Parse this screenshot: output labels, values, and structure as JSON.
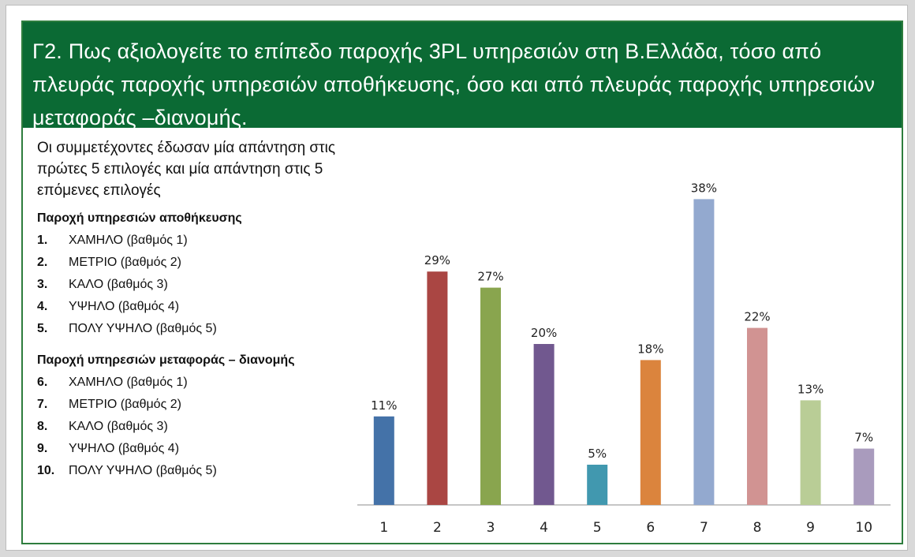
{
  "title": "Γ2. Πως αξιολογείτε το επίπεδο παροχής 3PL υπηρεσιών στη Β.Ελλάδα, τόσο από πλευράς παροχής υπηρεσιών αποθήκευσης, όσο και από πλευράς παροχής υπηρεσιών μεταφοράς –διανομής.",
  "note": "Οι συμμετέχοντες έδωσαν μία απάντηση στις πρώτες 5 επιλογές και μία απάντηση στις 5 επόμενες επιλογές",
  "legend": {
    "group1_title": "Παροχή υπηρεσιών αποθήκευσης",
    "group1_items": [
      {
        "num": "1.",
        "text": "ΧΑΜΗΛΟ (βαθμός 1)"
      },
      {
        "num": "2.",
        "text": "ΜΕΤΡΙΟ (βαθμός 2)"
      },
      {
        "num": "3.",
        "text": "ΚΑΛΟ (βαθμός 3)"
      },
      {
        "num": "4.",
        "text": "ΥΨΗΛΟ (βαθμός 4)"
      },
      {
        "num": "5.",
        "text": "ΠΟΛΥ ΥΨΗΛΟ (βαθμός 5)"
      }
    ],
    "group2_title": "Παροχή υπηρεσιών μεταφοράς – διανομής",
    "group2_items": [
      {
        "num": "6.",
        "text": "ΧΑΜΗΛΟ (βαθμός 1)"
      },
      {
        "num": "7.",
        "text": "ΜΕΤΡΙΟ (βαθμός 2)"
      },
      {
        "num": "8.",
        "text": "ΚΑΛΟ (βαθμός 3)"
      },
      {
        "num": "9.",
        "text": "ΥΨΗΛΟ (βαθμός 4)"
      },
      {
        "num": "10.",
        "text": "ΠΟΛΥ ΥΨΗΛΟ (βαθμός 5)"
      }
    ]
  },
  "chart_data": {
    "type": "bar",
    "title": "",
    "xlabel": "",
    "ylabel": "",
    "categories": [
      "1",
      "2",
      "3",
      "4",
      "5",
      "6",
      "7",
      "8",
      "9",
      "10"
    ],
    "values": [
      11,
      29,
      27,
      20,
      5,
      18,
      38,
      22,
      13,
      7
    ],
    "value_labels": [
      "11%",
      "29%",
      "27%",
      "20%",
      "5%",
      "18%",
      "38%",
      "22%",
      "13%",
      "7%"
    ],
    "ylim": [
      0,
      40
    ],
    "grid": false,
    "colors": [
      "#4472a8",
      "#aa4643",
      "#89a54e",
      "#71588f",
      "#4198af",
      "#db843d",
      "#93a9cf",
      "#d19392",
      "#b9cd96",
      "#a99bbd"
    ]
  }
}
